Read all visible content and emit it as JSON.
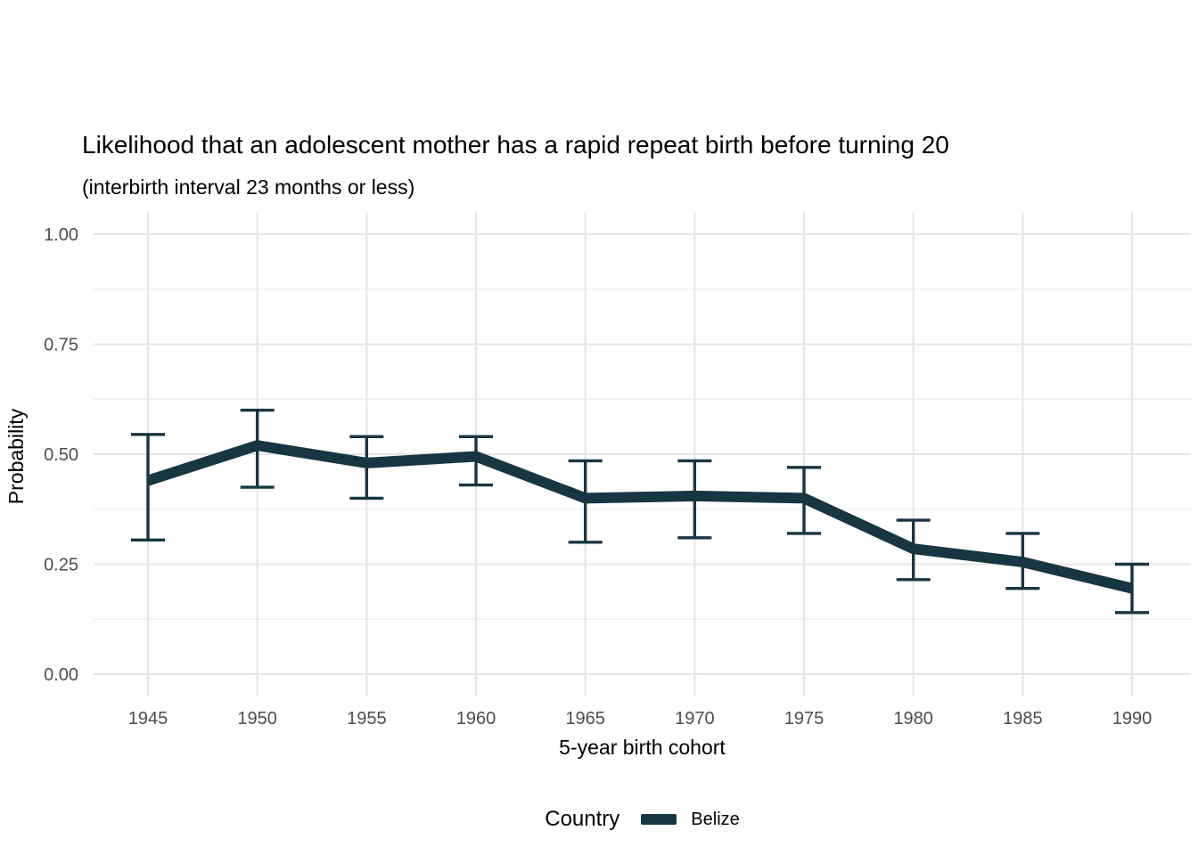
{
  "chart_data": {
    "type": "line",
    "title": "Likelihood that an adolescent mother has a rapid repeat birth before turning 20",
    "subtitle": "(interbirth interval 23 months or less)",
    "xlabel": "5-year birth cohort",
    "ylabel": "Probability",
    "x": [
      1945,
      1950,
      1955,
      1960,
      1965,
      1970,
      1975,
      1980,
      1985,
      1990
    ],
    "series": [
      {
        "name": "Belize",
        "color": "#183642",
        "values": [
          0.44,
          0.52,
          0.48,
          0.495,
          0.4,
          0.405,
          0.4,
          0.285,
          0.255,
          0.195
        ],
        "ci_lower": [
          0.305,
          0.425,
          0.4,
          0.43,
          0.3,
          0.31,
          0.32,
          0.215,
          0.195,
          0.14
        ],
        "ci_upper": [
          0.545,
          0.6,
          0.54,
          0.54,
          0.485,
          0.485,
          0.47,
          0.35,
          0.32,
          0.25
        ]
      }
    ],
    "ylim": [
      0,
      1
    ],
    "yticks": [
      0,
      0.25,
      0.5,
      0.75,
      1
    ],
    "ytick_labels": [
      "0.00",
      "0.25",
      "0.50",
      "0.75",
      "1.00"
    ],
    "y_minor": [
      0.125,
      0.375,
      0.625,
      0.875
    ],
    "grid": "horizontal major+minor, vertical major at each cohort",
    "legend": {
      "title": "Country",
      "position": "bottom"
    }
  },
  "colors": {
    "line": "#183642",
    "grid_major": "#e5e5e5",
    "grid_minor": "#efefef",
    "tick_label": "#4d4d4d",
    "background": "#ffffff"
  }
}
